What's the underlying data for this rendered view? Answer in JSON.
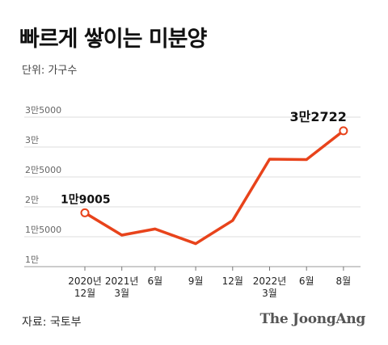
{
  "title": "빠르게 쌓이는 미분양",
  "unit_label": "단위: 가구수",
  "source_label": "자료: 국토부",
  "brand": "The JoongAng",
  "colors": {
    "line": "#e8431b",
    "grid": "#dddddd",
    "text": "#111111"
  },
  "chart_data": {
    "type": "line",
    "title": "빠르게 쌓이는 미분양",
    "ylabel": "단위: 가구수",
    "categories": [
      [
        "2020년",
        "12월"
      ],
      [
        "2021년",
        "3월"
      ],
      [
        "6월"
      ],
      [
        "9월"
      ],
      [
        "12월"
      ],
      [
        "2022년",
        "3월"
      ],
      [
        "6월"
      ],
      [
        "8월"
      ]
    ],
    "x_points": [
      0,
      1,
      1.9,
      3,
      4,
      5,
      6,
      7
    ],
    "values": [
      19005,
      15270,
      16300,
      13842,
      17710,
      27974,
      27910,
      32722
    ],
    "ylim": [
      10000,
      35000
    ],
    "yticks": [
      10000,
      15000,
      20000,
      25000,
      30000,
      35000
    ],
    "ytick_labels": [
      "1만",
      "1만5000",
      "2만",
      "2만5000",
      "3만",
      "3만5000"
    ],
    "annotations": [
      {
        "index": 0,
        "text": "1만9005"
      },
      {
        "index": 7,
        "text": "3만2722"
      }
    ],
    "grid": true
  }
}
